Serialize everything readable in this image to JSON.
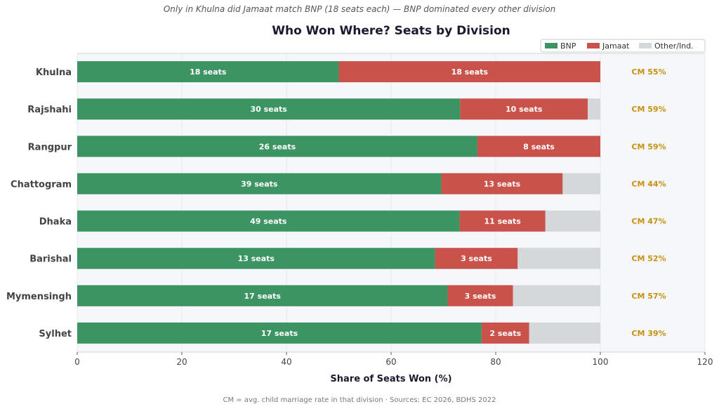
{
  "chart_data": {
    "type": "bar",
    "orientation": "horizontal",
    "stacked": true,
    "subtitle": "Only in Khulna did Jamaat match BNP (18 seats each) — BNP dominated every other division",
    "title": "Who Won Where? Seats by Division",
    "xlabel": "Share of Seats Won (%)",
    "xlim": [
      0,
      120
    ],
    "xticks": [
      0,
      20,
      40,
      60,
      80,
      100,
      120
    ],
    "grid": true,
    "legend_position": "top-right",
    "categories": [
      "Khulna",
      "Rajshahi",
      "Rangpur",
      "Chattogram",
      "Dhaka",
      "Barishal",
      "Mymensingh",
      "Sylhet"
    ],
    "series": [
      {
        "name": "BNP",
        "color": "#3d9463",
        "values": [
          50.0,
          73.2,
          76.5,
          69.6,
          73.1,
          68.4,
          70.8,
          77.3
        ],
        "labels": [
          "18 seats",
          "30 seats",
          "26 seats",
          "39 seats",
          "49 seats",
          "13 seats",
          "17 seats",
          "17 seats"
        ]
      },
      {
        "name": "Jamaat",
        "color": "#c9534a",
        "values": [
          50.0,
          24.4,
          23.5,
          23.2,
          16.4,
          15.8,
          12.5,
          9.1
        ],
        "labels": [
          "18 seats",
          "10 seats",
          "8 seats",
          "13 seats",
          "11 seats",
          "3 seats",
          "3 seats",
          "2 seats"
        ]
      },
      {
        "name": "Other/Ind.",
        "color": "#d5d8db",
        "values": [
          0,
          2.4,
          0,
          7.2,
          10.5,
          15.8,
          16.7,
          13.6
        ]
      }
    ],
    "annotations": [
      "CM 55%",
      "CM 59%",
      "CM 59%",
      "CM 44%",
      "CM 47%",
      "CM 52%",
      "CM 57%",
      "CM 39%"
    ],
    "annotation_color": "#c8900f",
    "footnote": "CM = avg. child marriage rate in that division  ·  Sources: EC 2026, BDHS 2022"
  }
}
